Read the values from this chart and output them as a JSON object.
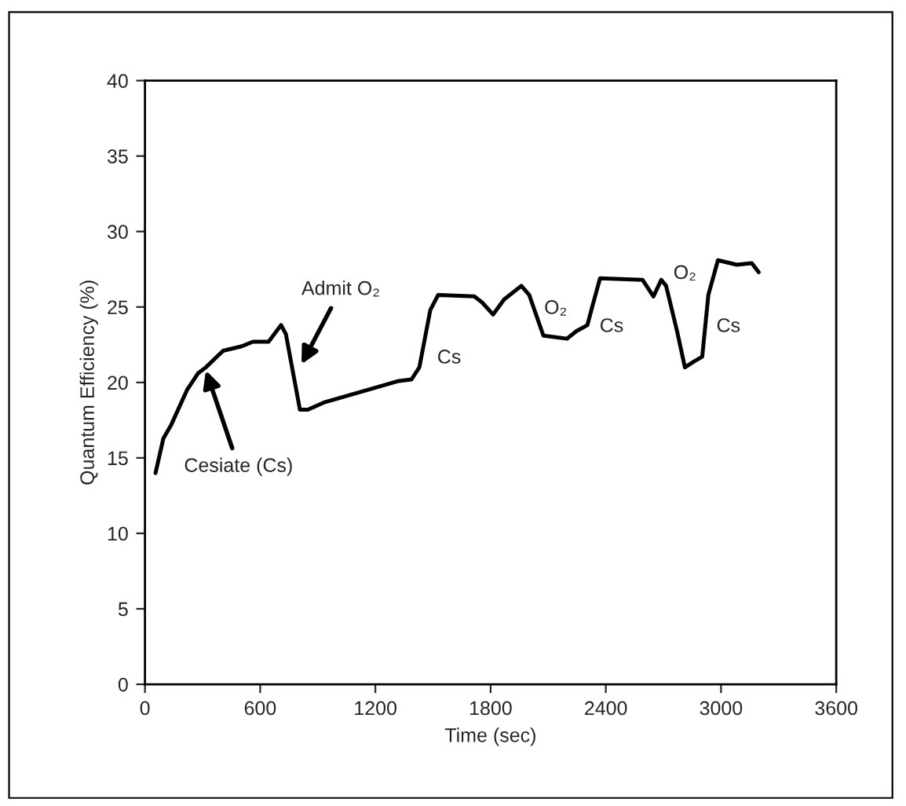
{
  "chart_data": {
    "type": "line",
    "xlabel": "Time (sec)",
    "ylabel": "Quantum Efficiency (%)",
    "x": [
      55,
      96,
      137,
      219,
      276,
      317,
      407,
      505,
      562,
      644,
      685,
      709,
      734,
      807,
      848,
      938,
      1159,
      1322,
      1388,
      1429,
      1486,
      1527,
      1715,
      1756,
      1813,
      1870,
      1960,
      2001,
      2075,
      2198,
      2247,
      2304,
      2329,
      2370,
      2591,
      2648,
      2689,
      2714,
      2771,
      2812,
      2861,
      2902,
      2934,
      2984,
      3082,
      3160,
      3196
    ],
    "series": [
      {
        "color": "#000000",
        "values": [
          14.0,
          16.3,
          17.2,
          19.5,
          20.6,
          21.0,
          22.1,
          22.4,
          22.7,
          22.7,
          23.4,
          23.8,
          23.2,
          18.2,
          18.2,
          18.7,
          19.5,
          20.1,
          20.2,
          21.0,
          24.8,
          25.8,
          25.7,
          25.3,
          24.5,
          25.5,
          26.4,
          25.8,
          23.1,
          22.9,
          23.4,
          23.8,
          25.0,
          26.9,
          26.8,
          25.7,
          26.8,
          26.4,
          23.4,
          21.0,
          21.4,
          21.7,
          25.8,
          28.1,
          27.8,
          27.9,
          27.3
        ]
      }
    ],
    "xlim": [
      0,
      3600
    ],
    "xticks": [
      0,
      600,
      1200,
      1800,
      2400,
      3000,
      3600
    ],
    "ylim": [
      0,
      40
    ],
    "yticks": [
      0,
      5,
      10,
      15,
      20,
      25,
      30,
      35,
      40
    ],
    "grid": false,
    "legend": false,
    "marker": "none",
    "line_style": "solid",
    "annotations": [
      {
        "text": "Cesiate (Cs)",
        "x": 317,
        "y": 20.8
      },
      {
        "text": "Admit O₂",
        "x": 815,
        "y": 21.2
      },
      "Cs",
      "O₂",
      "Cs",
      "O₂",
      "Cs"
    ]
  }
}
